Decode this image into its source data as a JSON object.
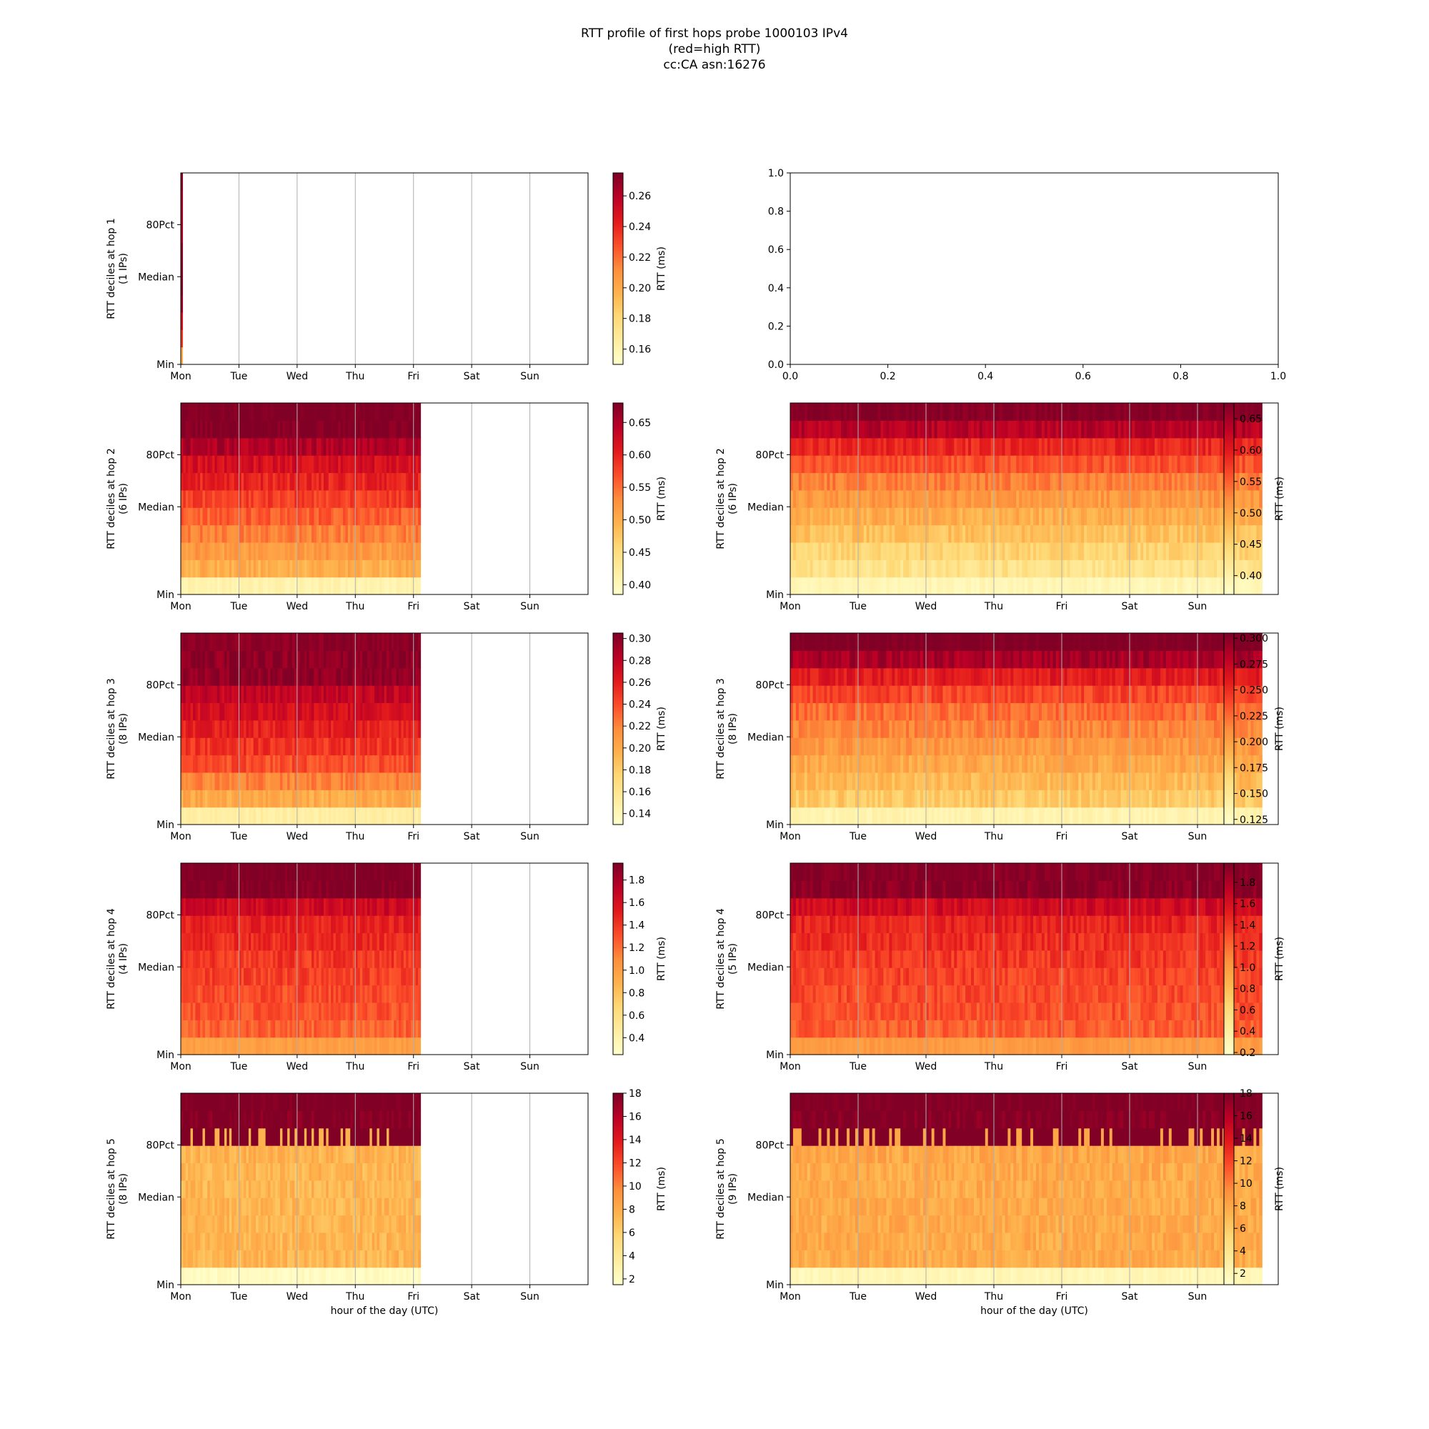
{
  "figure": {
    "title_lines": [
      "RTT profile of first hops probe 1000103 IPv4",
      "(red=high RTT)",
      "cc:CA asn:16276"
    ]
  },
  "chart_data": [
    {
      "id": "hop1-week1",
      "type": "heatmap",
      "colormap": "YlOrRd",
      "ylabel_lines": [
        "RTT deciles at hop 1",
        "(1 IPs)"
      ],
      "ytick_labels": [
        "Min",
        "Median",
        "80Pct"
      ],
      "xtick_labels": [
        "Mon",
        "Tue",
        "Wed",
        "Thu",
        "Fri",
        "Sat",
        "Sun"
      ],
      "xlabel": "",
      "data_extent_days": 0.03,
      "cbar_label": "RTT (ms)",
      "cbar_range": [
        0.15,
        0.275
      ],
      "cbar_ticks": [
        0.16,
        0.18,
        0.2,
        0.22,
        0.24,
        0.26
      ],
      "cbar_tick_labels": [
        "0.16",
        "0.18",
        "0.20",
        "0.22",
        "0.24",
        "0.26"
      ],
      "decile_values": [
        0.2,
        0.23,
        0.25,
        0.27,
        0.27,
        0.27,
        0.27,
        0.27,
        0.27,
        0.27,
        0.27
      ],
      "grid": true
    },
    {
      "id": "empty-axes",
      "type": "empty",
      "xtick_labels": [
        "0.0",
        "0.2",
        "0.4",
        "0.6",
        "0.8",
        "1.0"
      ],
      "ytick_labels": [
        "0.0",
        "0.2",
        "0.4",
        "0.6",
        "0.8",
        "1.0"
      ],
      "xlim": [
        0,
        1
      ],
      "ylim": [
        0,
        1
      ]
    },
    {
      "id": "hop2-week1",
      "type": "heatmap",
      "colormap": "YlOrRd",
      "ylabel_lines": [
        "RTT deciles at hop 2",
        "(6 IPs)"
      ],
      "ytick_labels": [
        "Min",
        "Median",
        "80Pct"
      ],
      "xtick_labels": [
        "Mon",
        "Tue",
        "Wed",
        "Thu",
        "Fri",
        "Sat",
        "Sun"
      ],
      "xlabel": "",
      "data_extent_days": 4.12,
      "cbar_label": "RTT (ms)",
      "cbar_range": [
        0.385,
        0.68
      ],
      "cbar_ticks": [
        0.4,
        0.45,
        0.5,
        0.55,
        0.6,
        0.65
      ],
      "cbar_tick_labels": [
        "0.40",
        "0.45",
        "0.50",
        "0.55",
        "0.60",
        "0.65"
      ],
      "decile_values": [
        0.41,
        0.5,
        0.52,
        0.54,
        0.56,
        0.58,
        0.6,
        0.62,
        0.65,
        0.68,
        0.68
      ],
      "grid": true
    },
    {
      "id": "hop2-week2",
      "type": "heatmap",
      "colormap": "YlOrRd",
      "ylabel_lines": [
        "RTT deciles at hop 2",
        "(6 IPs)"
      ],
      "ytick_labels": [
        "Min",
        "Median",
        "80Pct"
      ],
      "xtick_labels": [
        "Mon",
        "Tue",
        "Wed",
        "Thu",
        "Fri",
        "Sat",
        "Sun"
      ],
      "xlabel": "",
      "data_extent_days": 6.95,
      "cbar_label": "RTT (ms)",
      "cbar_range": [
        0.37,
        0.675
      ],
      "cbar_ticks": [
        0.4,
        0.45,
        0.5,
        0.55,
        0.6,
        0.65
      ],
      "cbar_tick_labels": [
        "0.40",
        "0.45",
        "0.50",
        "0.55",
        "0.60",
        "0.65"
      ],
      "decile_values": [
        0.39,
        0.43,
        0.45,
        0.47,
        0.49,
        0.51,
        0.53,
        0.56,
        0.59,
        0.64,
        0.67
      ],
      "grid": true
    },
    {
      "id": "hop3-week1",
      "type": "heatmap",
      "colormap": "YlOrRd",
      "ylabel_lines": [
        "RTT deciles at hop 3",
        "(8 IPs)"
      ],
      "ytick_labels": [
        "Min",
        "Median",
        "80Pct"
      ],
      "xtick_labels": [
        "Mon",
        "Tue",
        "Wed",
        "Thu",
        "Fri",
        "Sat",
        "Sun"
      ],
      "xlabel": "",
      "data_extent_days": 4.12,
      "cbar_label": "RTT (ms)",
      "cbar_range": [
        0.13,
        0.305
      ],
      "cbar_ticks": [
        0.14,
        0.16,
        0.18,
        0.2,
        0.22,
        0.24,
        0.26,
        0.28,
        0.3
      ],
      "cbar_tick_labels": [
        "0.14",
        "0.16",
        "0.18",
        "0.20",
        "0.22",
        "0.24",
        "0.26",
        "0.28",
        "0.30"
      ],
      "decile_values": [
        0.15,
        0.2,
        0.22,
        0.24,
        0.25,
        0.26,
        0.27,
        0.28,
        0.3,
        0.3,
        0.3
      ],
      "grid": true
    },
    {
      "id": "hop3-week2",
      "type": "heatmap",
      "colormap": "YlOrRd",
      "ylabel_lines": [
        "RTT deciles at hop 3",
        "(8 IPs)"
      ],
      "ytick_labels": [
        "Min",
        "Median",
        "80Pct"
      ],
      "xtick_labels": [
        "Mon",
        "Tue",
        "Wed",
        "Thu",
        "Fri",
        "Sat",
        "Sun"
      ],
      "xlabel": "",
      "data_extent_days": 6.95,
      "cbar_label": "RTT (ms)",
      "cbar_range": [
        0.12,
        0.305
      ],
      "cbar_ticks": [
        0.125,
        0.15,
        0.175,
        0.2,
        0.225,
        0.25,
        0.275,
        0.3
      ],
      "cbar_tick_labels": [
        "0.125",
        "0.150",
        "0.175",
        "0.200",
        "0.225",
        "0.250",
        "0.275",
        "0.300"
      ],
      "decile_values": [
        0.135,
        0.175,
        0.185,
        0.195,
        0.205,
        0.215,
        0.225,
        0.24,
        0.26,
        0.29,
        0.305
      ],
      "grid": true
    },
    {
      "id": "hop4-week1",
      "type": "heatmap",
      "colormap": "YlOrRd",
      "ylabel_lines": [
        "RTT deciles at hop 4",
        "(4 IPs)"
      ],
      "ytick_labels": [
        "Min",
        "Median",
        "80Pct"
      ],
      "xtick_labels": [
        "Mon",
        "Tue",
        "Wed",
        "Thu",
        "Fri",
        "Sat",
        "Sun"
      ],
      "xlabel": "",
      "data_extent_days": 4.12,
      "cbar_label": "RTT (ms)",
      "cbar_range": [
        0.25,
        1.95
      ],
      "cbar_ticks": [
        0.4,
        0.6,
        0.8,
        1.0,
        1.2,
        1.4,
        1.6,
        1.8
      ],
      "cbar_tick_labels": [
        "0.4",
        "0.6",
        "0.8",
        "1.0",
        "1.2",
        "1.4",
        "1.6",
        "1.8"
      ],
      "decile_values": [
        1.0,
        1.25,
        1.3,
        1.33,
        1.36,
        1.4,
        1.45,
        1.5,
        1.65,
        1.95,
        1.95
      ],
      "grid": true
    },
    {
      "id": "hop4-week2",
      "type": "heatmap",
      "colormap": "YlOrRd",
      "ylabel_lines": [
        "RTT deciles at hop 4",
        "(5 IPs)"
      ],
      "ytick_labels": [
        "Min",
        "Median",
        "80Pct"
      ],
      "xtick_labels": [
        "Mon",
        "Tue",
        "Wed",
        "Thu",
        "Fri",
        "Sat",
        "Sun"
      ],
      "xlabel": "",
      "data_extent_days": 6.95,
      "cbar_label": "RTT (ms)",
      "cbar_range": [
        0.18,
        1.98
      ],
      "cbar_ticks": [
        0.2,
        0.4,
        0.6,
        0.8,
        1.0,
        1.2,
        1.4,
        1.6,
        1.8
      ],
      "cbar_tick_labels": [
        "0.2",
        "0.4",
        "0.6",
        "0.8",
        "1.0",
        "1.2",
        "1.4",
        "1.6",
        "1.8"
      ],
      "decile_values": [
        1.0,
        1.25,
        1.3,
        1.33,
        1.36,
        1.4,
        1.45,
        1.5,
        1.65,
        1.95,
        1.95
      ],
      "grid": true
    },
    {
      "id": "hop5-week1",
      "type": "heatmap",
      "colormap": "YlOrRd",
      "ylabel_lines": [
        "RTT deciles at hop 5",
        "(8 IPs)"
      ],
      "ytick_labels": [
        "Min",
        "Median",
        "80Pct"
      ],
      "xtick_labels": [
        "Mon",
        "Tue",
        "Wed",
        "Thu",
        "Fri",
        "Sat",
        "Sun"
      ],
      "xlabel": "hour of the day (UTC)",
      "data_extent_days": 4.12,
      "cbar_label": "RTT (ms)",
      "cbar_range": [
        1.5,
        18.0
      ],
      "cbar_ticks": [
        2,
        4,
        6,
        8,
        10,
        12,
        14,
        16,
        18
      ],
      "cbar_tick_labels": [
        "2",
        "4",
        "6",
        "8",
        "10",
        "12",
        "14",
        "16",
        "18"
      ],
      "decile_values": [
        2.0,
        7.5,
        7.5,
        7.5,
        7.5,
        7.5,
        7.5,
        7.6,
        18.0,
        18.0,
        18.0
      ],
      "grid": true
    },
    {
      "id": "hop5-week2",
      "type": "heatmap",
      "colormap": "YlOrRd",
      "ylabel_lines": [
        "RTT deciles at hop 5",
        "(9 IPs)"
      ],
      "ytick_labels": [
        "Min",
        "Median",
        "80Pct"
      ],
      "xtick_labels": [
        "Mon",
        "Tue",
        "Wed",
        "Thu",
        "Fri",
        "Sat",
        "Sun"
      ],
      "xlabel": "hour of the day (UTC)",
      "data_extent_days": 6.95,
      "cbar_label": "RTT (ms)",
      "cbar_range": [
        1.0,
        18.0
      ],
      "cbar_ticks": [
        2,
        4,
        6,
        8,
        10,
        12,
        14,
        16,
        18
      ],
      "cbar_tick_labels": [
        "2",
        "4",
        "6",
        "8",
        "10",
        "12",
        "14",
        "16",
        "18"
      ],
      "decile_values": [
        2.0,
        7.8,
        7.8,
        7.8,
        7.8,
        7.8,
        7.8,
        8.0,
        18.0,
        18.0,
        18.0
      ],
      "grid": true
    }
  ]
}
